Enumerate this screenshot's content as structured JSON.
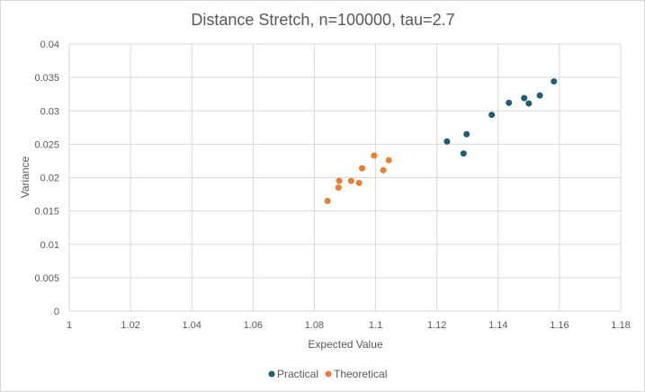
{
  "chart_data": {
    "type": "scatter",
    "title": "Distance Stretch, n=100000, tau=2.7",
    "xlabel": "Expected Value",
    "ylabel": "Variance",
    "xlim": [
      1,
      1.18
    ],
    "ylim": [
      0,
      0.04
    ],
    "x_ticks": [
      "1",
      "1.02",
      "1.04",
      "1.06",
      "1.08",
      "1.1",
      "1.12",
      "1.14",
      "1.16",
      "1.18"
    ],
    "y_ticks": [
      "0",
      "0.005",
      "0.01",
      "0.015",
      "0.02",
      "0.025",
      "0.03",
      "0.035",
      "0.04"
    ],
    "grid": "major gridlines on both axes",
    "legend_position": "bottom",
    "series": [
      {
        "name": "Practical",
        "color": "#1f5c7a",
        "points": [
          {
            "x": 1.1233,
            "y": 0.0254
          },
          {
            "x": 1.1287,
            "y": 0.0236
          },
          {
            "x": 1.1297,
            "y": 0.0265
          },
          {
            "x": 1.1379,
            "y": 0.0294
          },
          {
            "x": 1.1435,
            "y": 0.0312
          },
          {
            "x": 1.1485,
            "y": 0.0319
          },
          {
            "x": 1.15,
            "y": 0.0311
          },
          {
            "x": 1.1536,
            "y": 0.0323
          },
          {
            "x": 1.1582,
            "y": 0.0344
          }
        ]
      },
      {
        "name": "Theoretical",
        "color": "#ed7d31",
        "points": [
          {
            "x": 1.0843,
            "y": 0.0165
          },
          {
            "x": 1.0879,
            "y": 0.0185
          },
          {
            "x": 1.0881,
            "y": 0.0195
          },
          {
            "x": 1.092,
            "y": 0.0195
          },
          {
            "x": 1.0946,
            "y": 0.0192
          },
          {
            "x": 1.0956,
            "y": 0.0214
          },
          {
            "x": 1.0995,
            "y": 0.0233
          },
          {
            "x": 1.1025,
            "y": 0.0211
          },
          {
            "x": 1.1043,
            "y": 0.0226
          }
        ]
      }
    ]
  },
  "colors": {
    "gridline": "#d9d9d9",
    "text": "#595959",
    "background": "#ffffff"
  }
}
